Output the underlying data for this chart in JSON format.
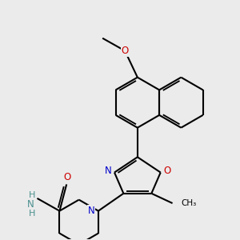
{
  "bg_color": "#ebebeb",
  "bond_color": "#000000",
  "bond_width": 1.5,
  "atom_colors": {
    "N": "#0000cc",
    "O": "#cc0000",
    "H": "#4a8f8f"
  },
  "font_size_atom": 8.5,
  "font_size_methyl": 7.5
}
